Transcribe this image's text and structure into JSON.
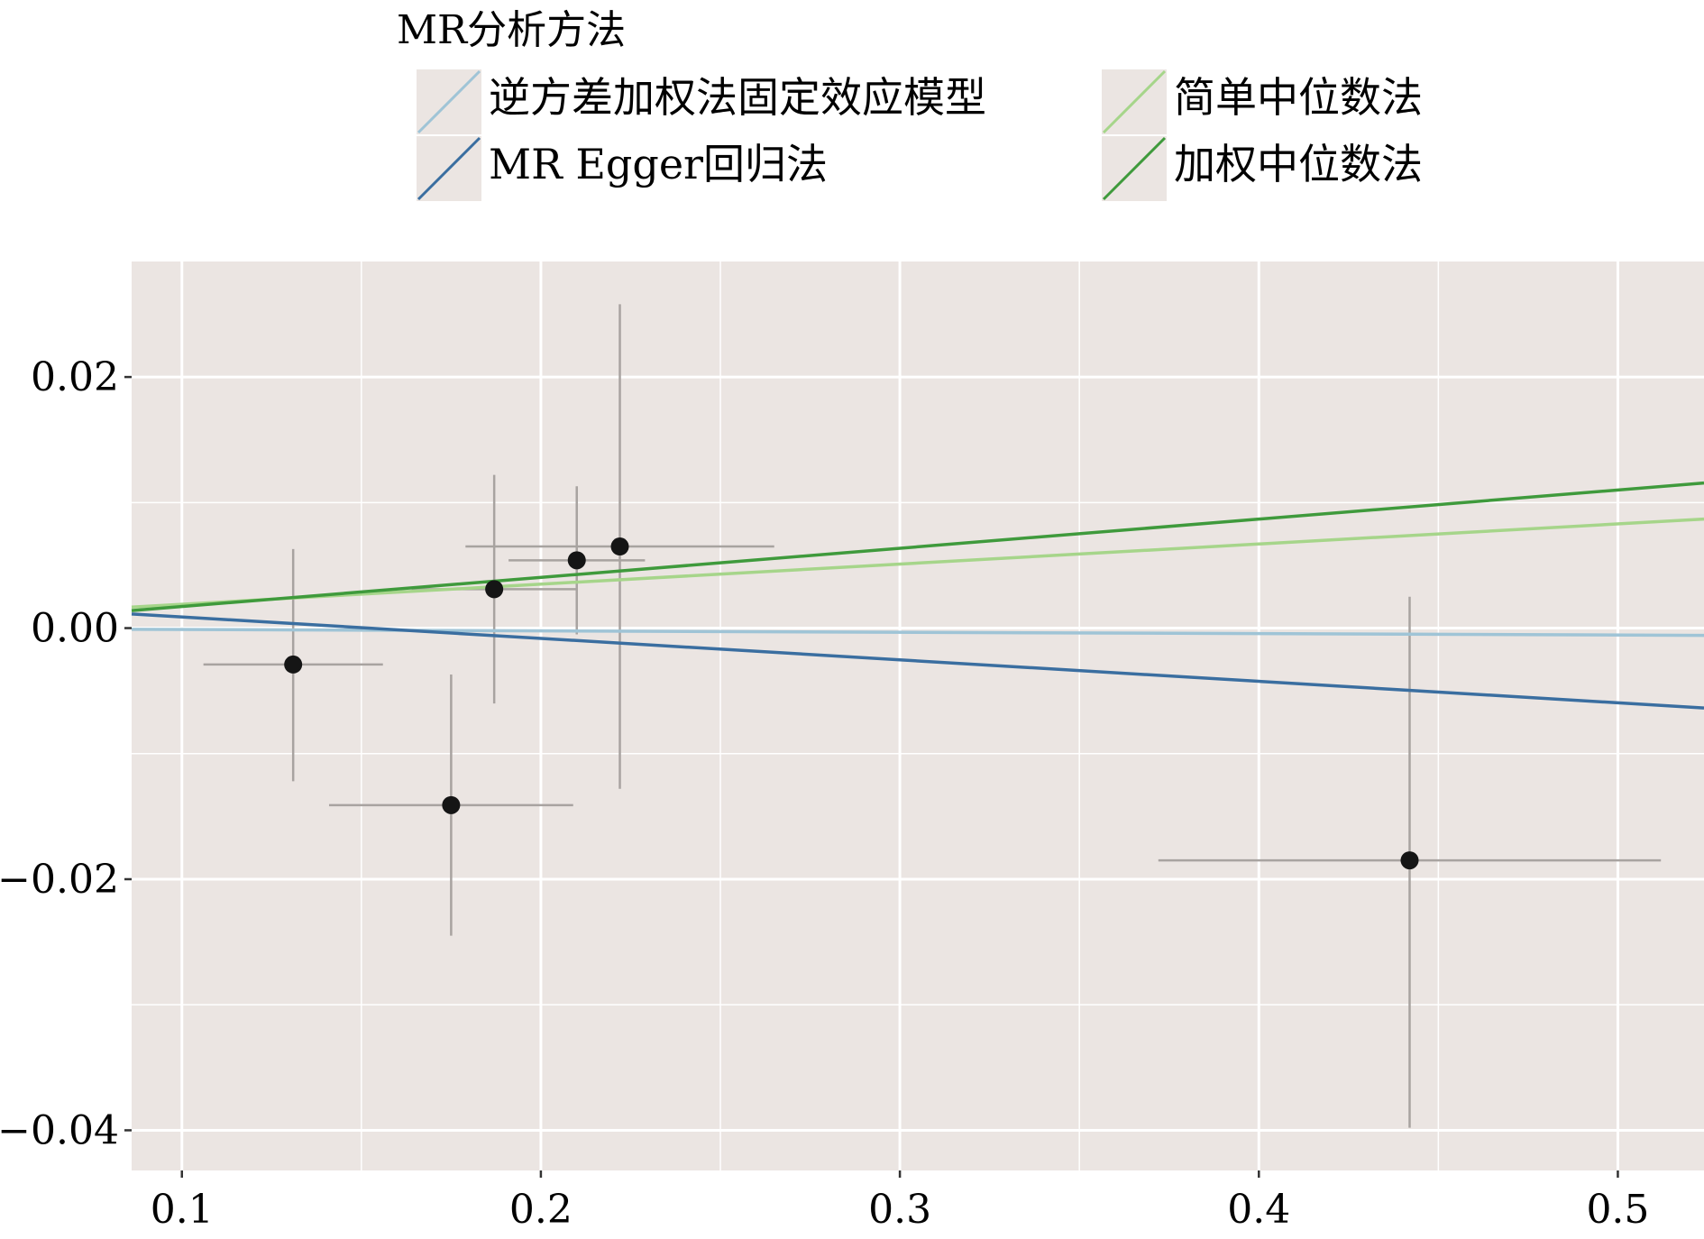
{
  "chart_data": {
    "type": "scatter",
    "legend": {
      "title": "MR分析方法",
      "placement": "top",
      "items": [
        {
          "label": "逆方差加权法固定效应模型",
          "color": "#9fc4d6"
        },
        {
          "label": "简单中位数法",
          "color": "#a6d58a"
        },
        {
          "label": "MR Egger回归法",
          "color": "#3a6ea0"
        },
        {
          "label": "加权中位数法",
          "color": "#3f9a3c"
        }
      ]
    },
    "xlim": [
      0.086,
      0.524
    ],
    "ylim": [
      -0.0432,
      0.0292
    ],
    "x_ticks": [
      {
        "value": 0.1,
        "label": "0.1"
      },
      {
        "value": 0.2,
        "label": "0.2"
      },
      {
        "value": 0.3,
        "label": "0.3"
      },
      {
        "value": 0.4,
        "label": "0.4"
      },
      {
        "value": 0.5,
        "label": "0.5"
      }
    ],
    "y_ticks": [
      {
        "value": 0.02,
        "label": "0.02"
      },
      {
        "value": 0.0,
        "label": "0.00"
      },
      {
        "value": -0.02,
        "label": "−0.02"
      },
      {
        "value": -0.04,
        "label": "−0.04"
      }
    ],
    "x_minor_gridlines": [
      0.15,
      0.25,
      0.35,
      0.45
    ],
    "y_minor_gridlines": [
      0.01,
      -0.01,
      -0.03
    ],
    "grid": true,
    "background": "#ebe5e2",
    "points": [
      {
        "x": 0.131,
        "y": -0.0029,
        "xmin": 0.106,
        "xmax": 0.156,
        "ymin": -0.0122,
        "ymax": 0.0063
      },
      {
        "x": 0.175,
        "y": -0.0141,
        "xmin": 0.141,
        "xmax": 0.209,
        "ymin": -0.0245,
        "ymax": -0.0037
      },
      {
        "x": 0.187,
        "y": 0.0031,
        "xmin": 0.164,
        "xmax": 0.21,
        "ymin": -0.006,
        "ymax": 0.0122
      },
      {
        "x": 0.21,
        "y": 0.0054,
        "xmin": 0.191,
        "xmax": 0.229,
        "ymin": -0.0005,
        "ymax": 0.0113
      },
      {
        "x": 0.222,
        "y": 0.0065,
        "xmin": 0.179,
        "xmax": 0.265,
        "ymin": -0.0128,
        "ymax": 0.0258
      },
      {
        "x": 0.442,
        "y": -0.0185,
        "xmin": 0.372,
        "xmax": 0.512,
        "ymin": -0.0398,
        "ymax": 0.0025
      }
    ],
    "lines": [
      {
        "series": "逆方差加权法固定效应模型",
        "color": "#9fc4d6",
        "intercept": 0.0,
        "slope": -0.0011
      },
      {
        "series": "MR Egger回归法",
        "color": "#3a6ea0",
        "intercept": 0.0026,
        "slope": -0.0171
      },
      {
        "series": "简单中位数法",
        "color": "#a6d58a",
        "intercept": 0.0003,
        "slope": 0.016
      },
      {
        "series": "加权中位数法",
        "color": "#3f9a3c",
        "intercept": -0.0006,
        "slope": 0.0232
      }
    ]
  }
}
